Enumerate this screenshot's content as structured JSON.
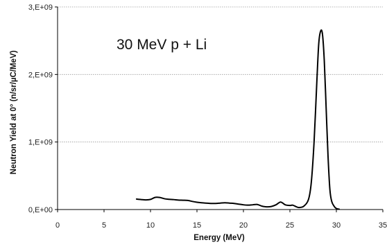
{
  "chart_data": {
    "type": "line",
    "title": "",
    "annotation": "30 MeV p + Li",
    "xlabel": "Energy (MeV)",
    "ylabel": "Neutron Yield at 0° (n/sr/µC/MeV)",
    "xlim": [
      0,
      35
    ],
    "ylim": [
      0,
      3000000000
    ],
    "xticks": [
      0,
      5,
      10,
      15,
      20,
      25,
      30,
      35
    ],
    "xtick_labels": [
      "0",
      "5",
      "10",
      "15",
      "20",
      "25",
      "30",
      "35"
    ],
    "yticks": [
      0,
      1000000000,
      2000000000,
      3000000000
    ],
    "ytick_labels": [
      "0,E+00",
      "1,E+09",
      "2,E+09",
      "3,E+09"
    ],
    "grid": "horizontal",
    "legend": "none",
    "colors": {
      "line": "#000000",
      "grid": "#9a9a9a",
      "axis": "#000000"
    },
    "series": [
      {
        "x": [
          8.5,
          9.0,
          9.5,
          10.0,
          10.5,
          11.0,
          11.5,
          12.0,
          12.5,
          13.0,
          13.5,
          14.0,
          14.5,
          15.0,
          15.5,
          16.0,
          16.5,
          17.0,
          17.5,
          18.0,
          18.5,
          19.0,
          19.5,
          20.0,
          20.5,
          21.0,
          21.5,
          22.0,
          22.5,
          23.0,
          23.5,
          24.0,
          24.5,
          25.0,
          25.3,
          25.7,
          26.0,
          26.5,
          27.0,
          27.3,
          27.6,
          27.9,
          28.1,
          28.3,
          28.5,
          28.7,
          28.9,
          29.1,
          29.3,
          29.5,
          29.8,
          30.0,
          30.3
        ],
        "y": [
          155000000,
          148000000,
          143000000,
          150000000,
          180000000,
          178000000,
          160000000,
          152000000,
          147000000,
          140000000,
          138000000,
          135000000,
          120000000,
          108000000,
          100000000,
          95000000,
          90000000,
          90000000,
          95000000,
          100000000,
          95000000,
          90000000,
          80000000,
          70000000,
          65000000,
          70000000,
          75000000,
          50000000,
          40000000,
          45000000,
          70000000,
          110000000,
          70000000,
          60000000,
          65000000,
          40000000,
          30000000,
          50000000,
          150000000,
          400000000,
          1000000000,
          1900000000,
          2450000000,
          2640000000,
          2600000000,
          2200000000,
          1500000000,
          800000000,
          300000000,
          120000000,
          40000000,
          15000000,
          5000000
        ]
      }
    ]
  }
}
